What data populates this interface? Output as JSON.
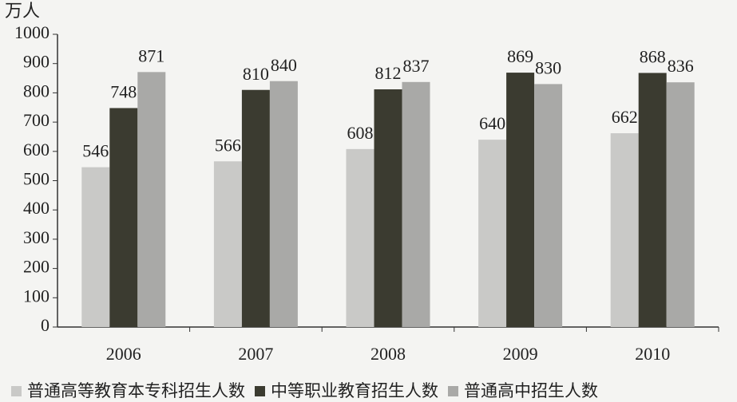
{
  "chart_data": {
    "type": "bar",
    "y_label": "万人",
    "categories": [
      "2006",
      "2007",
      "2008",
      "2009",
      "2010"
    ],
    "series": [
      {
        "name": "普通高等教育本专科招生人数",
        "color": "#c9c9c7",
        "values": [
          546,
          566,
          608,
          640,
          662
        ]
      },
      {
        "name": "中等职业教育招生人数",
        "color": "#3b3b30",
        "values": [
          748,
          810,
          812,
          869,
          868
        ]
      },
      {
        "name": "普通高中招生人数",
        "color": "#a9a9a7",
        "values": [
          871,
          840,
          837,
          830,
          836
        ]
      }
    ],
    "ylim": [
      0,
      1000
    ],
    "yticks": [
      0,
      100,
      200,
      300,
      400,
      500,
      600,
      700,
      800,
      900,
      1000
    ],
    "legend": "bottom"
  }
}
